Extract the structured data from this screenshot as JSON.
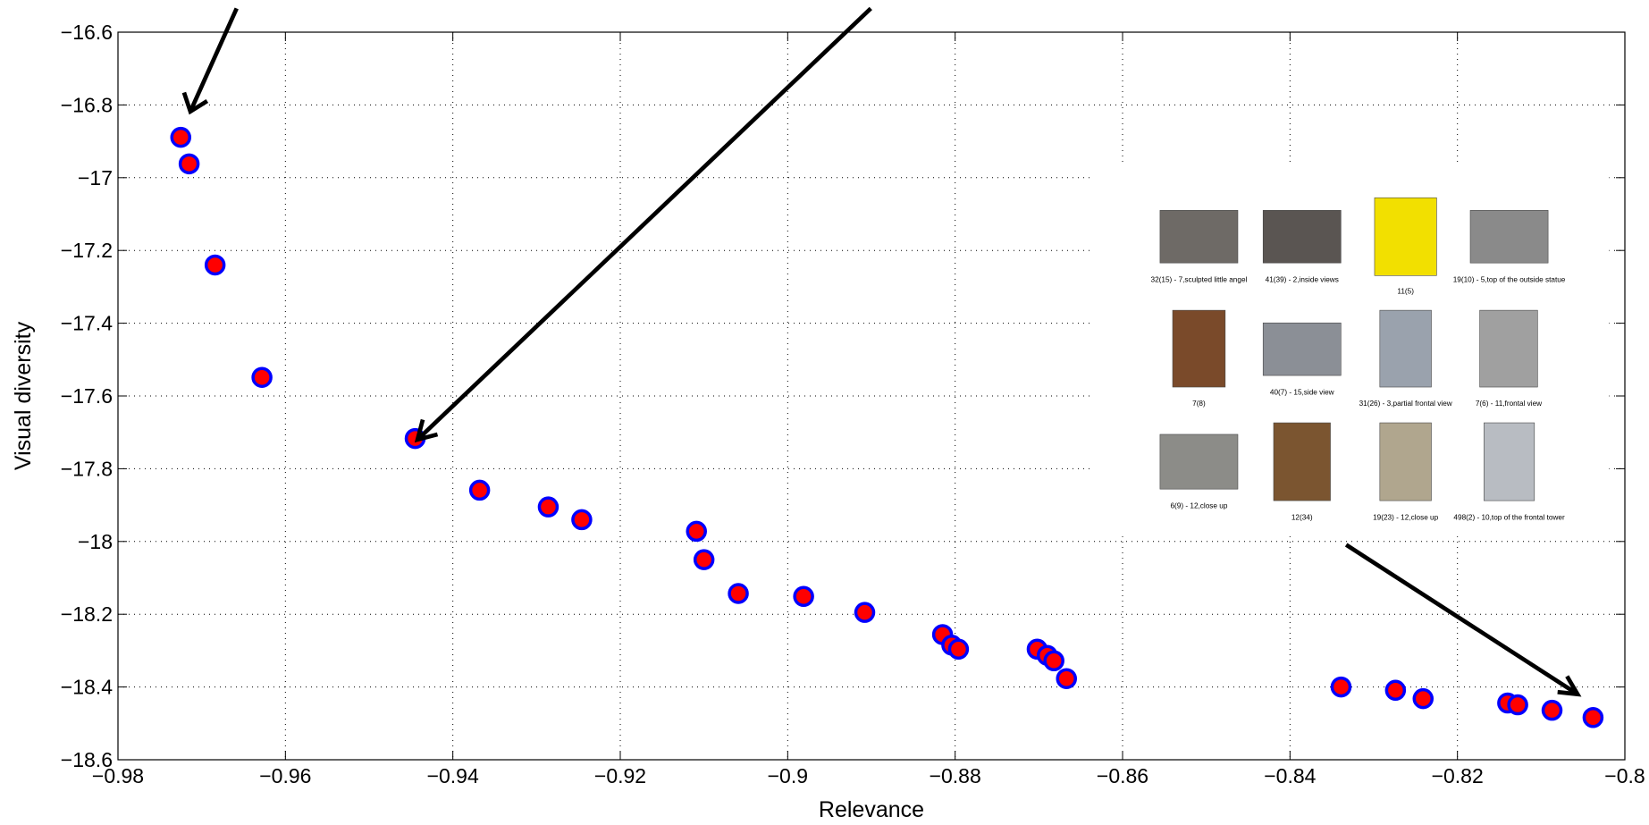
{
  "chart_data": {
    "type": "scatter",
    "x_label": "Relevance",
    "y_label": "Visual diversity",
    "x": [
      -0.9725,
      -0.9715,
      -0.9684,
      -0.9628,
      -0.9445,
      -0.9368,
      -0.9286,
      -0.9246,
      -0.9109,
      -0.91,
      -0.9059,
      -0.8981,
      -0.8908,
      -0.8815,
      -0.8804,
      -0.8796,
      -0.8702,
      -0.869,
      -0.8682,
      -0.8667,
      -0.8339,
      -0.8274,
      -0.8241,
      -0.814,
      -0.8128,
      -0.8087,
      -0.8038
    ],
    "series": [
      {
        "name": "Visual diversity",
        "color": "#ff0000",
        "edgecolor": "#0000ff",
        "values": [
          -16.889,
          -16.962,
          -17.24,
          -17.549,
          -17.717,
          -17.859,
          -17.905,
          -17.94,
          -17.972,
          -18.05,
          -18.143,
          -18.151,
          -18.195,
          -18.256,
          -18.285,
          -18.296,
          -18.296,
          -18.313,
          -18.328,
          -18.377,
          -18.4,
          -18.409,
          -18.432,
          -18.444,
          -18.449,
          -18.464,
          -18.484
        ]
      }
    ],
    "xlim": [
      -0.98,
      -0.8
    ],
    "xticks": [
      {
        "value": -0.98,
        "label": "−0.98"
      },
      {
        "value": -0.96,
        "label": "−0.96"
      },
      {
        "value": -0.94,
        "label": "−0.94"
      },
      {
        "value": -0.92,
        "label": "−0.92"
      },
      {
        "value": -0.9,
        "label": "−0.9"
      },
      {
        "value": -0.88,
        "label": "−0.88"
      },
      {
        "value": -0.86,
        "label": "−0.86"
      },
      {
        "value": -0.84,
        "label": "−0.84"
      },
      {
        "value": -0.82,
        "label": "−0.82"
      },
      {
        "value": -0.8,
        "label": "−0.8"
      }
    ],
    "ylim": [
      -18.6,
      -16.6
    ],
    "yticks": [
      {
        "value": -18.6,
        "label": "−18.6"
      },
      {
        "value": -18.4,
        "label": "−18.4"
      },
      {
        "value": -18.2,
        "label": "−18.2"
      },
      {
        "value": -18,
        "label": "−18"
      },
      {
        "value": -17.8,
        "label": "−17.8"
      },
      {
        "value": -17.6,
        "label": "−17.6"
      },
      {
        "value": -17.4,
        "label": "−17.4"
      },
      {
        "value": -17.2,
        "label": "−17.2"
      },
      {
        "value": -17,
        "label": "−17"
      },
      {
        "value": -16.8,
        "label": "−16.8"
      },
      {
        "value": -16.6,
        "label": "−16.6"
      }
    ],
    "grid": true
  },
  "thumbnail_captions": [
    "32(15) - 7,sculpted little angel",
    "41(39) - 2,inside views",
    "11(5)",
    "19(10) - 5,top of the outside statue",
    "7(8)",
    "40(7) - 15,side view",
    "31(26) - 3,partial frontal view",
    "7(6) - 11,frontal view",
    "6(9) - 12,close up",
    "12(34)",
    "19(23) - 12,close up",
    "498(2) - 10,top of the frontal tower"
  ]
}
